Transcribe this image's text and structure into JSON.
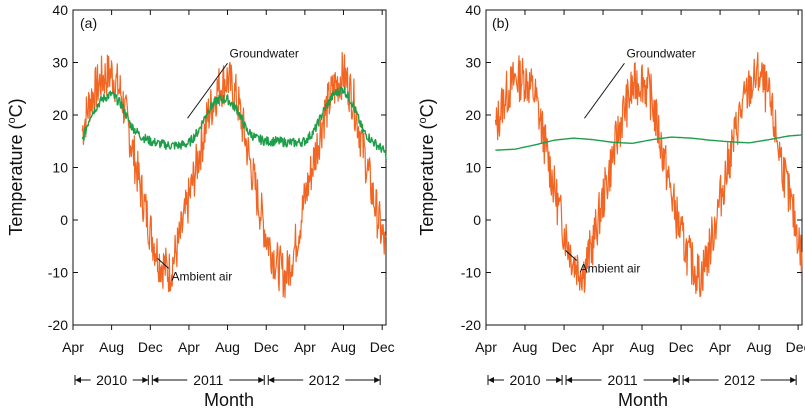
{
  "figure": {
    "xlabel": "Month",
    "ylabel_main": "Temperature (",
    "ylabel_sup": "o",
    "ylabel_tail": "C)"
  },
  "chart_data": [
    {
      "type": "line",
      "panel_label": "(a)",
      "xlabel": "Month",
      "ylabel": "Temperature (oC)",
      "ylim": [
        -20,
        40
      ],
      "yticks": [
        -20,
        -10,
        0,
        10,
        20,
        30,
        40
      ],
      "xlim": [
        2010.25,
        2012.95
      ],
      "xticks": [
        {
          "x": 2010.25,
          "label": "Apr"
        },
        {
          "x": 2010.583,
          "label": "Aug"
        },
        {
          "x": 2010.917,
          "label": "Dec"
        },
        {
          "x": 2011.25,
          "label": "Apr"
        },
        {
          "x": 2011.583,
          "label": "Aug"
        },
        {
          "x": 2011.917,
          "label": "Dec"
        },
        {
          "x": 2012.25,
          "label": "Apr"
        },
        {
          "x": 2012.583,
          "label": "Aug"
        },
        {
          "x": 2012.917,
          "label": "Dec"
        }
      ],
      "year_spans": [
        {
          "label": "2010",
          "from": 2010.25,
          "to": 2010.917
        },
        {
          "label": "2011",
          "from": 2010.917,
          "to": 2011.917
        },
        {
          "label": "2012",
          "from": 2011.917,
          "to": 2012.917
        }
      ],
      "series": [
        {
          "name": "Ambient air",
          "color": "#f26522",
          "x": [
            2010.33,
            2010.4,
            2010.5,
            2010.583,
            2010.667,
            2010.75,
            2010.833,
            2010.917,
            2011.0,
            2011.083,
            2011.167,
            2011.25,
            2011.333,
            2011.417,
            2011.5,
            2011.583,
            2011.667,
            2011.75,
            2011.833,
            2011.917,
            2012.0,
            2012.083,
            2012.167,
            2012.25,
            2012.333,
            2012.417,
            2012.5,
            2012.583,
            2012.667,
            2012.75,
            2012.833,
            2012.917,
            2012.95
          ],
          "y": [
            17,
            23,
            27,
            28,
            24,
            15,
            6,
            -2,
            -8,
            -10,
            -4,
            4,
            12,
            20,
            25,
            27,
            23,
            14,
            5,
            -3,
            -8,
            -11,
            -5,
            4,
            12,
            20,
            25,
            28,
            23,
            14,
            5,
            -3,
            -6
          ]
        },
        {
          "name": "Groundwater",
          "color": "#1e9e4a",
          "x": [
            2010.33,
            2010.4,
            2010.5,
            2010.583,
            2010.667,
            2010.75,
            2010.833,
            2010.917,
            2011.0,
            2011.083,
            2011.167,
            2011.25,
            2011.333,
            2011.417,
            2011.5,
            2011.583,
            2011.667,
            2011.75,
            2011.833,
            2011.917,
            2012.0,
            2012.083,
            2012.167,
            2012.25,
            2012.333,
            2012.417,
            2012.5,
            2012.583,
            2012.667,
            2012.75,
            2012.833,
            2012.917,
            2012.95
          ],
          "y": [
            15,
            20,
            23,
            24,
            22,
            18,
            16,
            15,
            14.5,
            14.2,
            14.2,
            14.6,
            17,
            21,
            23,
            23,
            21,
            17,
            15.5,
            15,
            15,
            14.8,
            14.7,
            15,
            17,
            21,
            24,
            25,
            22,
            17,
            15,
            13.5,
            12.5
          ]
        }
      ],
      "annotations": [
        {
          "text": "Groundwater",
          "x": 2011.6,
          "y": 31
        },
        {
          "text": "Ambient air",
          "x": 2011.1,
          "y": -11.5
        }
      ]
    },
    {
      "type": "line",
      "panel_label": "(b)",
      "xlabel": "Month",
      "ylabel": "Temperature (oC)",
      "ylim": [
        -20,
        40
      ],
      "yticks": [
        -20,
        -10,
        0,
        10,
        20,
        30,
        40
      ],
      "xlim": [
        2010.25,
        2012.95
      ],
      "xticks": [
        {
          "x": 2010.25,
          "label": "Apr"
        },
        {
          "x": 2010.583,
          "label": "Aug"
        },
        {
          "x": 2010.917,
          "label": "Dec"
        },
        {
          "x": 2011.25,
          "label": "Apr"
        },
        {
          "x": 2011.583,
          "label": "Aug"
        },
        {
          "x": 2011.917,
          "label": "Dec"
        },
        {
          "x": 2012.25,
          "label": "Apr"
        },
        {
          "x": 2012.583,
          "label": "Aug"
        },
        {
          "x": 2012.917,
          "label": "Dec"
        }
      ],
      "year_spans": [
        {
          "label": "2010",
          "from": 2010.25,
          "to": 2010.917
        },
        {
          "label": "2011",
          "from": 2010.917,
          "to": 2011.917
        },
        {
          "label": "2012",
          "from": 2011.917,
          "to": 2012.917
        }
      ],
      "series": [
        {
          "name": "Ambient air",
          "color": "#f26522",
          "x": [
            2010.33,
            2010.4,
            2010.5,
            2010.583,
            2010.667,
            2010.75,
            2010.833,
            2010.917,
            2011.0,
            2011.083,
            2011.167,
            2011.25,
            2011.333,
            2011.417,
            2011.5,
            2011.583,
            2011.667,
            2011.75,
            2011.833,
            2011.917,
            2012.0,
            2012.083,
            2012.167,
            2012.25,
            2012.333,
            2012.417,
            2012.5,
            2012.583,
            2012.667,
            2012.75,
            2012.833,
            2012.917,
            2012.95
          ],
          "y": [
            17,
            23,
            27,
            27,
            24,
            15,
            6,
            -2,
            -8,
            -10,
            -4,
            4,
            12,
            20,
            25,
            27,
            23,
            14,
            5,
            -3,
            -8,
            -11,
            -5,
            4,
            12,
            20,
            25,
            28,
            23,
            14,
            5,
            -3,
            -8
          ]
        },
        {
          "name": "Groundwater",
          "color": "#1e9e4a",
          "x": [
            2010.33,
            2010.5,
            2010.667,
            2010.833,
            2011.0,
            2011.167,
            2011.333,
            2011.5,
            2011.667,
            2011.833,
            2012.0,
            2012.167,
            2012.333,
            2012.5,
            2012.667,
            2012.833,
            2012.95
          ],
          "y": [
            13.3,
            13.5,
            14.3,
            15.2,
            15.6,
            15.3,
            14.8,
            14.6,
            15.3,
            15.8,
            15.6,
            15.2,
            14.9,
            14.7,
            15.3,
            16.0,
            16.2
          ]
        }
      ],
      "annotations": [
        {
          "text": "Groundwater",
          "x": 2011.45,
          "y": 31
        },
        {
          "text": "Ambient air",
          "x": 2011.05,
          "y": -10
        }
      ]
    }
  ]
}
